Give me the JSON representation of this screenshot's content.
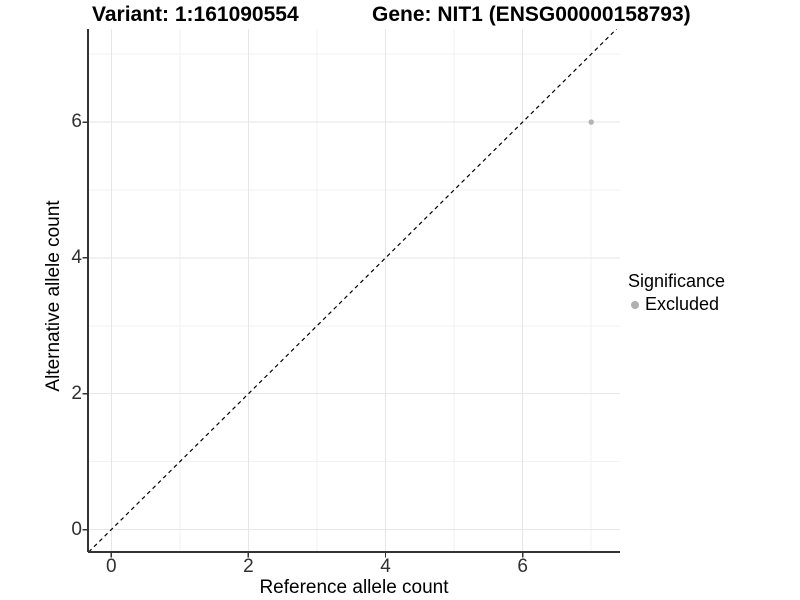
{
  "chart_data": {
    "type": "scatter",
    "title_variant": "Variant: 1:161090554",
    "title_gene": "Gene: NIT1 (ENSG00000158793)",
    "xlabel": "Reference allele count",
    "ylabel": "Alternative allele count",
    "xlim": [
      -0.34,
      7.42
    ],
    "ylim": [
      -0.33,
      7.37
    ],
    "x_ticks": [
      0,
      2,
      4,
      6
    ],
    "y_ticks": [
      0,
      2,
      4,
      6
    ],
    "x_minor": [
      1,
      3,
      5,
      7
    ],
    "y_minor": [
      1,
      3,
      5,
      7
    ],
    "grid": true,
    "points": [
      {
        "x": 7,
        "y": 6,
        "series": "Excluded"
      }
    ],
    "identity_line": {
      "style": "dashed",
      "slope": 1,
      "intercept": 0
    },
    "legend": {
      "position": "right",
      "title": "Significance",
      "items": [
        {
          "label": "Excluded",
          "color": "#b0b0b0"
        }
      ]
    },
    "colors": {
      "point": "#b3b3b3",
      "axis_line": "#333333",
      "tick_mark": "#333333",
      "tick_label": "#303030",
      "grid_major": "#e6e6e6",
      "grid_minor": "#f2f2f2",
      "dashed_line": "#000000",
      "title": "#000000",
      "background": "#ffffff"
    }
  }
}
